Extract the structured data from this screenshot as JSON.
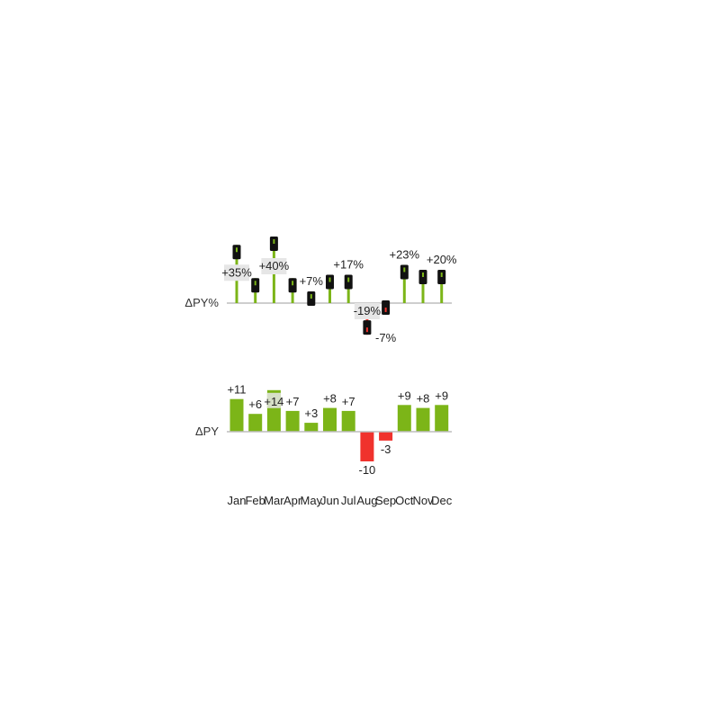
{
  "chart_data": [
    {
      "type": "lollipop",
      "row_label": "ΔPY%",
      "categories": [
        "Jan",
        "Feb",
        "Mar",
        "Apr",
        "May",
        "Jun",
        "Jul",
        "Aug",
        "Sep",
        "Oct",
        "Nov",
        "Dec"
      ],
      "values": [
        35,
        15,
        40,
        15,
        7,
        17,
        17,
        -19,
        -7,
        23,
        20,
        20
      ],
      "data_labels": [
        "+35%",
        "",
        "+40%",
        "",
        "+7%",
        "",
        "+17%",
        "-19%",
        "-7%",
        "+23%",
        "",
        "+20%"
      ],
      "ylim": [
        -25,
        45
      ]
    },
    {
      "type": "bar",
      "row_label": "ΔPY",
      "categories": [
        "Jan",
        "Feb",
        "Mar",
        "Apr",
        "May",
        "Jun",
        "Jul",
        "Aug",
        "Sep",
        "Oct",
        "Nov",
        "Dec"
      ],
      "values": [
        11,
        6,
        14,
        7,
        3,
        8,
        7,
        -10,
        -3,
        9,
        8,
        9
      ],
      "data_labels": [
        "+11",
        "+6",
        "+14",
        "+7",
        "+3",
        "+8",
        "+7",
        "-10",
        "-3",
        "+9",
        "+8",
        "+9"
      ],
      "ylim": [
        -12,
        16
      ]
    }
  ],
  "colors": {
    "positive": "#7cb518",
    "negative": "#f0322d",
    "baseline": "#bdbdbd",
    "marker": "#111111",
    "label_box": "#e6e6e6"
  }
}
